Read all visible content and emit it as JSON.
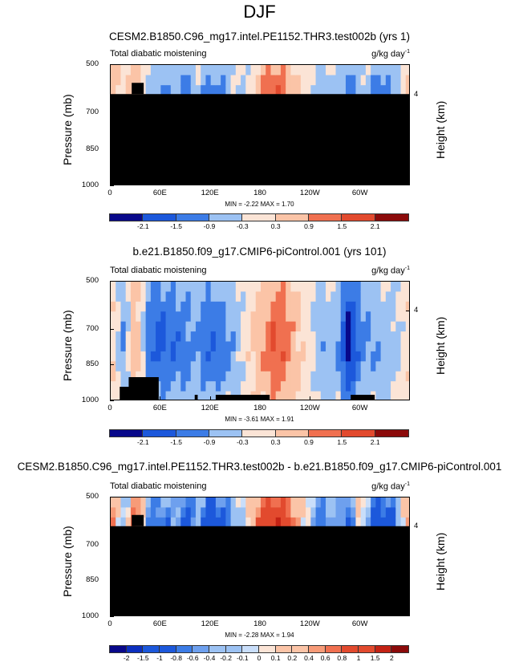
{
  "figure": {
    "title": "DJF"
  },
  "chart_data": [
    {
      "type": "heatmap",
      "title": "CESM2.B1850.C96_mg17.intel.PE1152.THR3.test002b (yrs 1)",
      "subtitle_left": "Total diabatic moistening",
      "units": "g/kg day",
      "units_exp": "-1",
      "ylabel": "Pressure (mb)",
      "ylabel_right": "Height (km)",
      "yticks": [
        "500",
        "700",
        "850",
        "1000"
      ],
      "ytick_values": [
        500,
        700,
        850,
        1000
      ],
      "ylim": [
        500,
        1000
      ],
      "yright_ticks": [
        "4"
      ],
      "xticks": [
        "0",
        "60E",
        "120E",
        "180",
        "120W",
        "60W"
      ],
      "xtick_values": [
        0,
        60,
        120,
        180,
        240,
        300
      ],
      "xlim": [
        0,
        360
      ],
      "stats": "MIN = -2.22  MAX =  1.70",
      "colorbar_labels": [
        "-2.1",
        "-1.5",
        "-0.9",
        "-0.3",
        "0.3",
        "0.9",
        "1.5",
        "2.1"
      ],
      "colorbar_ticks": [
        -2.1,
        -1.5,
        -0.9,
        -0.3,
        0.3,
        0.9,
        1.5,
        2.1
      ],
      "min": -2.22,
      "max": 1.7,
      "mask_pressure": 620,
      "field": {
        "lon": [
          0,
          15,
          30,
          45,
          60,
          75,
          90,
          105,
          120,
          135,
          150,
          165,
          180,
          195,
          210,
          225,
          240,
          255,
          270,
          285,
          300,
          315,
          330,
          345,
          360
        ],
        "values": [
          0.6,
          0.3,
          1.0,
          -0.6,
          -1.2,
          -0.9,
          -1.5,
          -0.6,
          -1.3,
          -1.2,
          -0.4,
          -0.2,
          0.9,
          1.7,
          1.3,
          0.2,
          -0.2,
          -0.9,
          -0.4,
          -1.6,
          -0.5,
          -1.1,
          -1.4,
          -0.6,
          0.6
        ]
      }
    },
    {
      "type": "heatmap",
      "title": "b.e21.B1850.f09_g17.CMIP6-piControl.001 (yrs 101)",
      "subtitle_left": "Total diabatic moistening",
      "units": "g/kg day",
      "units_exp": "-1",
      "ylabel": "Pressure (mb)",
      "ylabel_right": "Height (km)",
      "yticks": [
        "500",
        "700",
        "850",
        "1000"
      ],
      "ytick_values": [
        500,
        700,
        850,
        1000
      ],
      "ylim": [
        500,
        1000
      ],
      "yright_ticks": [
        "4"
      ],
      "xticks": [
        "0",
        "60E",
        "120E",
        "180",
        "120W",
        "60W"
      ],
      "xtick_values": [
        0,
        60,
        120,
        180,
        240,
        300
      ],
      "xlim": [
        0,
        360
      ],
      "stats": "MIN = -3.61  MAX =  1.91",
      "colorbar_labels": [
        "-2.1",
        "-1.5",
        "-0.9",
        "-0.3",
        "0.3",
        "0.9",
        "1.5",
        "2.1"
      ],
      "colorbar_ticks": [
        -2.1,
        -1.5,
        -0.9,
        -0.3,
        0.3,
        0.9,
        1.5,
        2.1
      ],
      "min": -3.61,
      "max": 1.91,
      "mask_pressure": null,
      "field": {
        "lon": [
          0,
          15,
          30,
          45,
          60,
          75,
          90,
          105,
          120,
          135,
          150,
          165,
          180,
          195,
          210,
          225,
          240,
          255,
          270,
          285,
          300,
          315,
          330,
          345,
          360
        ],
        "values": [
          0.4,
          -0.9,
          0.8,
          -1.1,
          -1.5,
          -1.3,
          -1.0,
          -0.8,
          -1.4,
          -1.0,
          -0.6,
          0.1,
          0.6,
          1.4,
          1.2,
          0.4,
          -0.2,
          -0.7,
          -0.5,
          -2.2,
          -1.0,
          -0.8,
          -0.6,
          -0.4,
          0.3
        ]
      }
    },
    {
      "type": "heatmap",
      "title": "CESM2.B1850.C96_mg17.intel.PE1152.THR3.test002b - b.e21.B1850.f09_g17.CMIP6-piControl.001",
      "subtitle_left": "Total diabatic moistening",
      "units": "g/kg day",
      "units_exp": "-1",
      "ylabel": "Pressure (mb)",
      "ylabel_right": "Height (km)",
      "yticks": [
        "500",
        "700",
        "850",
        "1000"
      ],
      "ytick_values": [
        500,
        700,
        850,
        1000
      ],
      "ylim": [
        500,
        1000
      ],
      "yright_ticks": [
        "4"
      ],
      "xticks": [
        "0",
        "60E",
        "120E",
        "180",
        "120W",
        "60W"
      ],
      "xtick_values": [
        0,
        60,
        120,
        180,
        240,
        300
      ],
      "xlim": [
        0,
        360
      ],
      "stats": "MIN = -2.28  MAX =  1.94",
      "colorbar_labels": [
        "-2",
        "-1.5",
        "-1",
        "-0.8",
        "-0.6",
        "-0.4",
        "-0.2",
        "-0.1",
        "0",
        "0.1",
        "0.2",
        "0.4",
        "0.6",
        "0.8",
        "1",
        "1.5",
        "2"
      ],
      "colorbar_ticks": [
        -2,
        -1.5,
        -1,
        -0.8,
        -0.6,
        -0.4,
        -0.2,
        -0.1,
        0,
        0.1,
        0.2,
        0.4,
        0.6,
        0.8,
        1,
        1.5,
        2
      ],
      "min": -2.28,
      "max": 1.94,
      "mask_pressure": 620,
      "field": {
        "lon": [
          0,
          15,
          30,
          45,
          60,
          75,
          90,
          105,
          120,
          135,
          150,
          165,
          180,
          195,
          210,
          225,
          240,
          255,
          270,
          285,
          300,
          315,
          330,
          345,
          360
        ],
        "values": [
          0.8,
          -0.4,
          0.9,
          -0.7,
          -1.0,
          -0.5,
          -1.2,
          -0.6,
          -1.4,
          -1.1,
          -0.5,
          0.2,
          0.9,
          1.6,
          1.4,
          0.3,
          -0.3,
          -1.0,
          -0.3,
          -1.2,
          0.4,
          -0.9,
          -1.5,
          -0.4,
          0.5
        ]
      }
    }
  ]
}
